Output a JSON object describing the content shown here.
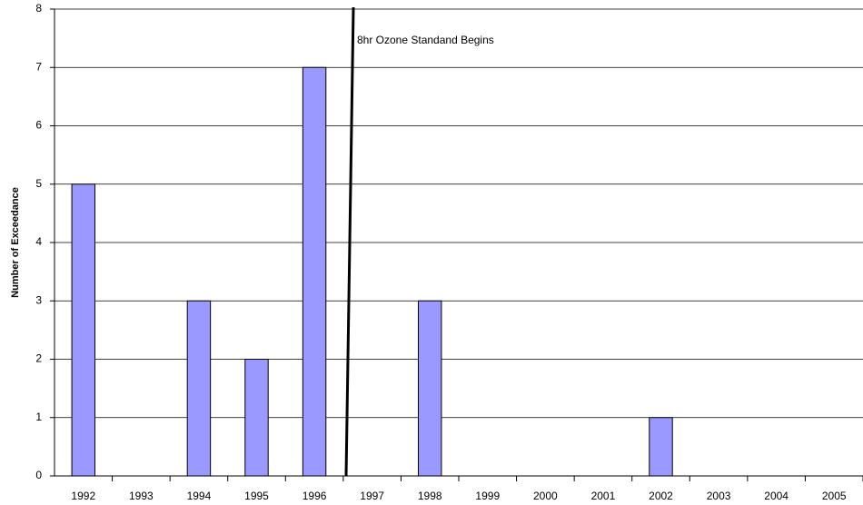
{
  "chart_data": {
    "type": "bar",
    "y_label": "Number of Exceedance",
    "annotation": "8hr Ozone Standand Begins",
    "categories": [
      "1992",
      "1993",
      "1994",
      "1995",
      "1996",
      "1997",
      "1998",
      "1999",
      "2000",
      "2001",
      "2002",
      "2003",
      "2004",
      "2005"
    ],
    "values": [
      5,
      0,
      3,
      2,
      7,
      0,
      3,
      0,
      0,
      0,
      1,
      0,
      0,
      0
    ],
    "color": "#9999ff",
    "ylim": [
      0,
      8
    ],
    "yticks": [
      0,
      1,
      2,
      3,
      4,
      5,
      6,
      7,
      8
    ],
    "grid": true
  }
}
